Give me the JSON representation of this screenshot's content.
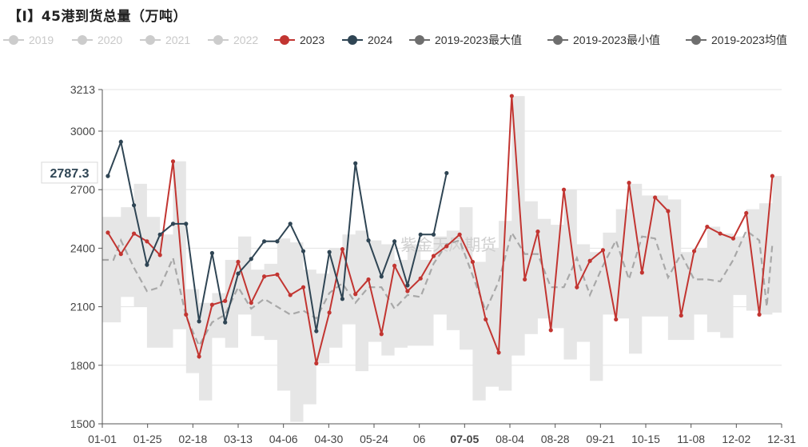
{
  "chart_data": {
    "type": "line",
    "title": "【I】45港到货总量（万吨）",
    "ylim": [
      1500,
      3213
    ],
    "yticks": [
      1500,
      1800,
      2100,
      2400,
      2700,
      3000,
      3213
    ],
    "xticks": [
      "01-01",
      "01-25",
      "02-18",
      "03-13",
      "04-06",
      "04-30",
      "05-24",
      "06",
      "07-05",
      "08-04",
      "08-28",
      "09-21",
      "10-15",
      "11-08",
      "12-02",
      "12-31"
    ],
    "highlight_xtick": "07-05",
    "pointer_value": "2787.3",
    "watermark": "紫金天风期货",
    "grid": true,
    "legend": [
      {
        "name": "2019",
        "color": "#cccccc",
        "active": false
      },
      {
        "name": "2020",
        "color": "#cccccc",
        "active": false
      },
      {
        "name": "2021",
        "color": "#cccccc",
        "active": false
      },
      {
        "name": "2022",
        "color": "#cccccc",
        "active": false
      },
      {
        "name": "2023",
        "color": "#c23531",
        "active": true
      },
      {
        "name": "2024",
        "color": "#2f4554",
        "active": true
      },
      {
        "name": "2019-2023最大值",
        "color": "#6e6e6e",
        "active": true
      },
      {
        "name": "2019-2023最小值",
        "color": "#6e6e6e",
        "active": true
      },
      {
        "name": "2019-2023均值",
        "color": "#6e6e6e",
        "active": true
      }
    ],
    "series": [
      {
        "name": "2023",
        "color": "#c23531",
        "x": [
          3,
          10,
          17,
          24,
          31,
          38,
          45,
          52,
          59,
          66,
          73,
          80,
          87,
          94,
          101,
          108,
          115,
          122,
          129,
          136,
          143,
          150,
          157,
          164,
          171,
          178,
          185,
          192,
          199,
          206,
          213,
          220,
          227,
          234,
          241,
          248,
          255,
          262,
          269,
          276,
          283,
          290,
          297,
          304,
          311,
          318,
          325,
          332,
          339,
          346,
          353,
          360
        ],
        "values": [
          2480,
          2370,
          2475,
          2435,
          2365,
          2845,
          2060,
          1845,
          2110,
          2130,
          2330,
          2120,
          2255,
          2265,
          2160,
          2200,
          1810,
          2070,
          2395,
          2165,
          2240,
          1960,
          2310,
          2180,
          2245,
          2360,
          2410,
          2470,
          2330,
          2035,
          1865,
          3180,
          2240,
          2485,
          1980,
          2700,
          2200,
          2335,
          2390,
          2035,
          2735,
          2275,
          2660,
          2590,
          2055,
          2385,
          2510,
          2475,
          2450,
          2580,
          2060,
          2770
        ]
      },
      {
        "name": "2024",
        "color": "#2f4554",
        "x": [
          3,
          10,
          17,
          24,
          31,
          38,
          45,
          52,
          59,
          66,
          73,
          80,
          87,
          94,
          101,
          108,
          115,
          122,
          129,
          136,
          143,
          150,
          157,
          164,
          171,
          178,
          185
        ],
        "values": [
          2770,
          2945,
          2620,
          2315,
          2470,
          2525,
          2525,
          2025,
          2375,
          2020,
          2270,
          2345,
          2435,
          2435,
          2525,
          2385,
          1975,
          2380,
          2140,
          2835,
          2440,
          2255,
          2435,
          2210,
          2470,
          2470,
          2785
        ]
      },
      {
        "name": "2019-2023最大值",
        "color": "#e6e6e6",
        "x": [
          0,
          10,
          17,
          24,
          31,
          38,
          45,
          52,
          59,
          66,
          73,
          80,
          87,
          94,
          101,
          108,
          115,
          122,
          129,
          136,
          143,
          150,
          157,
          164,
          171,
          178,
          185,
          192,
          199,
          206,
          213,
          220,
          227,
          234,
          241,
          248,
          255,
          262,
          269,
          276,
          283,
          290,
          297,
          304,
          311,
          318,
          325,
          332,
          339,
          346,
          353,
          360
        ],
        "values": [
          2560,
          2610,
          2730,
          2560,
          2470,
          2845,
          2190,
          2120,
          2170,
          2340,
          2460,
          2290,
          2320,
          2450,
          2430,
          2290,
          2270,
          2400,
          2470,
          2490,
          2440,
          2420,
          2340,
          2420,
          2340,
          2460,
          2490,
          2610,
          2330,
          2400,
          2540,
          3180,
          2640,
          2550,
          2520,
          2700,
          2420,
          2380,
          2480,
          2600,
          2730,
          2670,
          2670,
          2650,
          2380,
          2400,
          2510,
          2475,
          2460,
          2600,
          2630,
          2770
        ]
      },
      {
        "name": "2019-2023最小值",
        "color": "#e6e6e6",
        "x": [
          0,
          10,
          17,
          24,
          31,
          38,
          45,
          52,
          59,
          66,
          73,
          80,
          87,
          94,
          101,
          108,
          115,
          122,
          129,
          136,
          143,
          150,
          157,
          164,
          171,
          178,
          185,
          192,
          199,
          206,
          213,
          220,
          227,
          234,
          241,
          248,
          255,
          262,
          269,
          276,
          283,
          290,
          297,
          304,
          311,
          318,
          325,
          332,
          339,
          346,
          353,
          360
        ],
        "values": [
          2020,
          2150,
          2100,
          1890,
          1890,
          1985,
          1760,
          1620,
          1940,
          1890,
          2060,
          1950,
          1930,
          1670,
          1510,
          1600,
          1810,
          1890,
          2010,
          1770,
          1920,
          1850,
          1890,
          1900,
          1900,
          2060,
          1980,
          1880,
          1620,
          1690,
          1670,
          1850,
          1960,
          2040,
          1990,
          1830,
          1920,
          1720,
          2060,
          2040,
          1860,
          2050,
          2050,
          1930,
          1930,
          2060,
          1970,
          1940,
          2160,
          2080,
          2060,
          2070
        ]
      },
      {
        "name": "2019-2023均值",
        "color": "#a8a8a8",
        "x": [
          0,
          6,
          10,
          17,
          24,
          31,
          38,
          45,
          52,
          59,
          66,
          73,
          80,
          87,
          94,
          101,
          108,
          115,
          122,
          129,
          136,
          143,
          150,
          157,
          164,
          171,
          178,
          185,
          192,
          199,
          206,
          213,
          220,
          227,
          234,
          241,
          248,
          255,
          262,
          269,
          276,
          283,
          290,
          297,
          304,
          311,
          318,
          325,
          332,
          339,
          346,
          353,
          357,
          360
        ],
        "values": [
          2340,
          2340,
          2440,
          2300,
          2180,
          2200,
          2350,
          2050,
          1900,
          2020,
          2060,
          2200,
          2090,
          2140,
          2100,
          2060,
          2080,
          2040,
          2170,
          2220,
          2120,
          2200,
          2200,
          2090,
          2160,
          2150,
          2320,
          2420,
          2440,
          2260,
          2080,
          2230,
          2480,
          2370,
          2370,
          2200,
          2200,
          2350,
          2160,
          2310,
          2440,
          2240,
          2460,
          2450,
          2250,
          2370,
          2240,
          2240,
          2230,
          2340,
          2490,
          2440,
          2100,
          2420
        ]
      }
    ]
  }
}
